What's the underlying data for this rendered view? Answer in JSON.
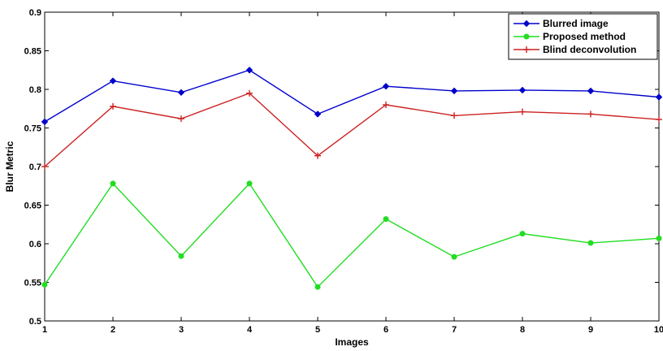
{
  "chart_data": {
    "type": "line",
    "title": "",
    "xlabel": "Images",
    "ylabel": "Blur Metric",
    "xlim": [
      1,
      10
    ],
    "ylim": [
      0.5,
      0.9
    ],
    "x": [
      1,
      2,
      3,
      4,
      5,
      6,
      7,
      8,
      9,
      10
    ],
    "xticks": [
      1,
      2,
      3,
      4,
      5,
      6,
      7,
      8,
      9,
      10
    ],
    "yticks": [
      "0.5",
      "0.55",
      "0.6",
      "0.65",
      "0.7",
      "0.75",
      "0.8",
      "0.85",
      "0.9"
    ],
    "grid": false,
    "legend_position": "top-right",
    "series": [
      {
        "name": "Blurred image",
        "color": "#0000cc",
        "marker": "diamond",
        "values": [
          0.758,
          0.811,
          0.796,
          0.825,
          0.768,
          0.804,
          0.798,
          0.799,
          0.798,
          0.79
        ]
      },
      {
        "name": "Proposed method",
        "color": "#22dd22",
        "marker": "circle",
        "values": [
          0.547,
          0.678,
          0.584,
          0.678,
          0.544,
          0.632,
          0.583,
          0.613,
          0.601,
          0.607
        ]
      },
      {
        "name": "Blind deconvolution",
        "color": "#cc2222",
        "marker": "plus",
        "values": [
          0.7,
          0.778,
          0.762,
          0.795,
          0.714,
          0.78,
          0.766,
          0.771,
          0.768,
          0.761
        ]
      }
    ]
  }
}
